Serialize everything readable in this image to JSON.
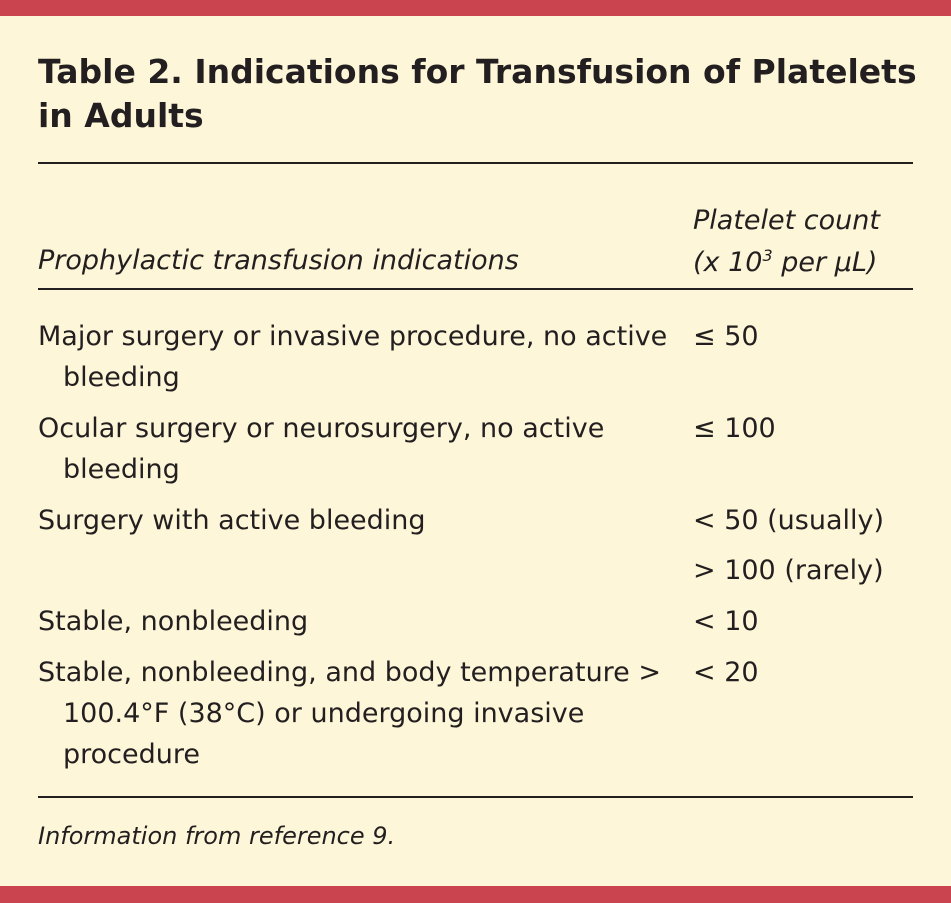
{
  "title": "Table 2. Indications for Transfusion of Platelets in Adults",
  "header": {
    "col1": "Prophylactic transfusion indications",
    "col2_line1": "Platelet count",
    "col2_line2_pre": "(x 10",
    "col2_line2_sup": "3",
    "col2_line2_post": " per µL)"
  },
  "rows": [
    {
      "indication": "Major surgery or invasive procedure, no active bleeding",
      "values": [
        "≤ 50"
      ]
    },
    {
      "indication": "Ocular surgery or neurosurgery, no active bleeding",
      "values": [
        "≤ 100"
      ]
    },
    {
      "indication": "Surgery with active bleeding",
      "values": [
        "< 50 (usually)",
        "> 100 (rarely)"
      ]
    },
    {
      "indication": "Stable, nonbleeding",
      "values": [
        "< 10"
      ]
    },
    {
      "indication": "Stable, nonbleeding, and body temperature > 100.4°F (38°C) or undergoing invasive procedure",
      "values": [
        "< 20"
      ]
    }
  ],
  "footnote": "Information from reference 9.",
  "colors": {
    "background": "#fdf6d8",
    "accent_bar": "#c9444f",
    "text": "#231f20"
  }
}
